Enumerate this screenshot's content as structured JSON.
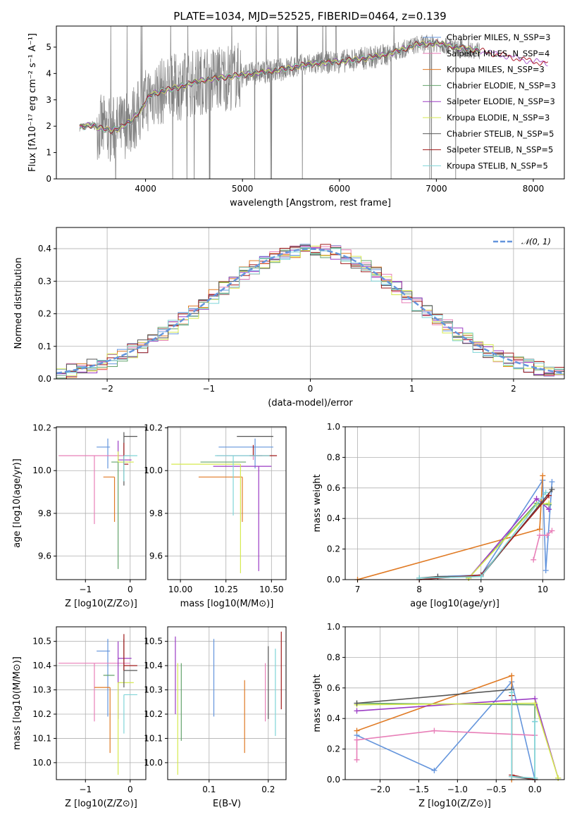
{
  "title": "PLATE=1034, MJD=52525, FIBERID=0464, z=0.139",
  "colors": {
    "Chabrier MILES": "#6495dc",
    "Salpeter MILES": "#e87fb8",
    "Kroupa MILES": "#e07a24",
    "Chabrier ELODIE": "#63a36c",
    "Salpeter ELODIE": "#9b3bc4",
    "Kroupa ELODIE": "#d5ea4f",
    "Chabrier STELIB": "#555555",
    "Salpeter STELIB": "#a11a1a",
    "Kroupa STELIB": "#7fd5d8",
    "data": "#808080",
    "gaussian": "#6495dc"
  },
  "chart_data": [
    {
      "type": "line",
      "panel": "spectrum",
      "title": "PLATE=1034, MJD=52525, FIBERID=0464, z=0.139",
      "xlabel": "wavelength [Angstrom, rest frame]",
      "ylabel": "Flux [fλ10⁻¹⁷ erg cm⁻² s⁻¹ A⁻¹]",
      "xlim": [
        3080,
        8320
      ],
      "ylim": [
        0,
        5.8
      ],
      "xticks": [
        4000,
        5000,
        6000,
        7000,
        8000
      ],
      "yticks": [
        0,
        1,
        2,
        3,
        4,
        5
      ],
      "legend_position": "upper right",
      "legend": [
        "Chabrier MILES, N_SSP=3",
        "Salpeter MILES, N_SSP=4",
        "Kroupa MILES, N_SSP=3",
        "Chabrier ELODIE, N_SSP=3",
        "Salpeter ELODIE, N_SSP=3",
        "Kroupa ELODIE, N_SSP=3",
        "Chabrier STELIB, N_SSP=5",
        "Salpeter STELIB, N_SSP=5",
        "Kroupa STELIB, N_SSP=5"
      ],
      "continuum": {
        "x": [
          3320,
          3450,
          3550,
          3650,
          3750,
          3850,
          3950,
          4050,
          4200,
          4400,
          4600,
          4800,
          5000,
          5200,
          5400,
          5600,
          5800,
          6000,
          6200,
          6400,
          6600,
          6800,
          7000,
          7200,
          7400,
          7600,
          7800,
          8000,
          8150
        ],
        "y": [
          1.95,
          2.05,
          1.9,
          1.85,
          1.95,
          2.2,
          2.6,
          3.2,
          3.35,
          3.55,
          3.75,
          3.85,
          3.95,
          4.05,
          4.15,
          4.3,
          4.4,
          4.45,
          4.55,
          4.65,
          4.85,
          5.1,
          5.15,
          5.0,
          4.9,
          4.75,
          4.6,
          4.45,
          4.4
        ]
      }
    },
    {
      "type": "histogram",
      "panel": "residuals",
      "xlabel": "(data-model)/error",
      "ylabel": "Normed distribution",
      "xlim": [
        -2.5,
        2.5
      ],
      "ylim": [
        0,
        0.465
      ],
      "xticks": [
        -2,
        -1,
        0,
        1,
        2
      ],
      "yticks": [
        0.0,
        0.1,
        0.2,
        0.3,
        0.4
      ],
      "legend": [
        "𝒩(0, 1)"
      ],
      "gaussian": {
        "mean": 0,
        "sigma": 1
      }
    },
    {
      "type": "errorbar",
      "panel": "age_vs_Z",
      "xlabel": "Z [log10(Z/Z⊙)]",
      "ylabel": "age  [log10(age/yr)]",
      "xlim": [
        -1.65,
        0.35
      ],
      "ylim": [
        9.49,
        10.205
      ],
      "xticks": [
        -1,
        0
      ],
      "yticks": [
        9.6,
        9.8,
        10.0,
        10.2
      ],
      "series": [
        {
          "name": "Chabrier MILES",
          "x": -0.5,
          "y": 10.11,
          "xerr": [
            0.25,
            0.05
          ],
          "yerr": [
            0.1,
            0.04
          ]
        },
        {
          "name": "Salpeter MILES",
          "x": -0.8,
          "y": 10.07,
          "xerr": [
            0.8,
            0.8
          ],
          "yerr": [
            0.32,
            0.0
          ]
        },
        {
          "name": "Kroupa MILES",
          "x": -0.35,
          "y": 9.97,
          "xerr": [
            0.25,
            0.0
          ],
          "yerr": [
            0.21,
            0.0
          ]
        },
        {
          "name": "Chabrier ELODIE",
          "x": -0.27,
          "y": 10.04,
          "xerr": [
            0.15,
            0.15
          ],
          "yerr": [
            0.5,
            0.0
          ]
        },
        {
          "name": "Salpeter ELODIE",
          "x": -0.27,
          "y": 10.05,
          "xerr": [
            0.0,
            0.3
          ],
          "yerr": [
            0.0,
            0.09
          ]
        },
        {
          "name": "Kroupa ELODIE",
          "x": -0.27,
          "y": 10.04,
          "xerr": [
            0.0,
            0.35
          ],
          "yerr": [
            0.0,
            0.05
          ]
        },
        {
          "name": "Chabrier STELIB",
          "x": -0.14,
          "y": 10.16,
          "xerr": [
            0.0,
            0.3
          ],
          "yerr": [
            0.23,
            0.02
          ]
        },
        {
          "name": "Salpeter STELIB",
          "x": -0.14,
          "y": 10.03,
          "xerr": [
            0.0,
            0.1
          ],
          "yerr": [
            0.0,
            0.1
          ]
        },
        {
          "name": "Kroupa STELIB",
          "x": -0.14,
          "y": 10.07,
          "xerr": [
            0.0,
            0.3
          ],
          "yerr": [
            0.12,
            0.0
          ]
        }
      ]
    },
    {
      "type": "errorbar",
      "panel": "age_vs_mass",
      "xlabel": "mass [log10(M/M⊙)]",
      "ylabel": "",
      "xlim": [
        9.93,
        10.58
      ],
      "ylim": [
        9.49,
        10.205
      ],
      "xticks": [
        10.0,
        10.25,
        10.5
      ],
      "yticks": [
        9.6,
        9.8,
        10.0,
        10.2
      ],
      "series": [
        {
          "name": "Chabrier MILES",
          "x": 10.41,
          "y": 10.11,
          "xerr": [
            0.2,
            0.1
          ],
          "yerr": [
            0.1,
            0.04
          ]
        },
        {
          "name": "Salpeter MILES",
          "x": 10.4,
          "y": 10.07,
          "xerr": [
            0.2,
            0.05
          ],
          "yerr": [
            0.02,
            0.0
          ]
        },
        {
          "name": "Kroupa MILES",
          "x": 10.34,
          "y": 9.97,
          "xerr": [
            0.24,
            0.0
          ],
          "yerr": [
            0.21,
            0.0
          ]
        },
        {
          "name": "Chabrier ELODIE",
          "x": 10.36,
          "y": 10.04,
          "xerr": [
            0.25,
            0.0
          ],
          "yerr": [
            0.0,
            0.0
          ]
        },
        {
          "name": "Salpeter ELODIE",
          "x": 10.43,
          "y": 10.02,
          "xerr": [
            0.25,
            0.07
          ],
          "yerr": [
            0.49,
            0.0
          ]
        },
        {
          "name": "Kroupa ELODIE",
          "x": 10.33,
          "y": 10.03,
          "xerr": [
            0.38,
            0.0
          ],
          "yerr": [
            0.51,
            0.0
          ]
        },
        {
          "name": "Chabrier STELIB",
          "x": 10.38,
          "y": 10.16,
          "xerr": [
            0.07,
            0.13
          ],
          "yerr": [
            0.0,
            0.0
          ]
        },
        {
          "name": "Salpeter STELIB",
          "x": 10.4,
          "y": 10.07,
          "xerr": [
            0.02,
            0.13
          ],
          "yerr": [
            0.0,
            0.05
          ]
        },
        {
          "name": "Kroupa STELIB",
          "x": 10.29,
          "y": 10.07,
          "xerr": [
            0.1,
            0.2
          ],
          "yerr": [
            0.28,
            0.0
          ]
        }
      ]
    },
    {
      "type": "line",
      "panel": "weight_vs_age",
      "xlabel": "age  [log10(age/yr)]",
      "ylabel": "mass weight",
      "xlim": [
        6.8,
        10.35
      ],
      "ylim": [
        0,
        1
      ],
      "xticks": [
        7,
        8,
        9,
        10
      ],
      "yticks": [
        0.0,
        0.2,
        0.4,
        0.6,
        0.8,
        1.0
      ],
      "series": [
        {
          "name": "Chabrier MILES",
          "x": [
            8.3,
            9.0,
            10.0,
            10.05,
            10.15
          ],
          "y": [
            0.02,
            0.03,
            0.65,
            0.06,
            0.64
          ]
        },
        {
          "name": "Salpeter MILES",
          "x": [
            9.85,
            9.95,
            10.07,
            10.15
          ],
          "y": [
            0.13,
            0.29,
            0.29,
            0.32
          ]
        },
        {
          "name": "Kroupa MILES",
          "x": [
            7.0,
            9.95,
            10.0
          ],
          "y": [
            0.0,
            0.33,
            0.68
          ]
        },
        {
          "name": "Chabrier ELODIE",
          "x": [
            8.8,
            9.9,
            10.1
          ],
          "y": [
            0.01,
            0.5,
            0.49
          ]
        },
        {
          "name": "Salpeter ELODIE",
          "x": [
            8.8,
            9.9,
            10.1
          ],
          "y": [
            0.01,
            0.53,
            0.46
          ]
        },
        {
          "name": "Kroupa ELODIE",
          "x": [
            8.8,
            9.9,
            10.1
          ],
          "y": [
            0.01,
            0.49,
            0.5
          ]
        },
        {
          "name": "Chabrier STELIB",
          "x": [
            8.0,
            8.3,
            9.0,
            10.15
          ],
          "y": [
            0.01,
            0.02,
            0.02,
            0.59
          ]
        },
        {
          "name": "Salpeter STELIB",
          "x": [
            8.0,
            9.0,
            10.1
          ],
          "y": [
            0.0,
            0.03,
            0.55
          ]
        },
        {
          "name": "Kroupa STELIB",
          "x": [
            8.0,
            9.0,
            10.05
          ],
          "y": [
            0.01,
            0.02,
            0.57
          ]
        }
      ]
    },
    {
      "type": "errorbar",
      "panel": "mass_vs_Z",
      "xlabel": "Z [log10(Z/Z⊙)]",
      "ylabel": "mass [log10(M/M⊙)]",
      "xlim": [
        -1.65,
        0.35
      ],
      "ylim": [
        9.93,
        10.56
      ],
      "xticks": [
        -1,
        0
      ],
      "yticks": [
        10.0,
        10.1,
        10.2,
        10.3,
        10.4,
        10.5
      ],
      "series": [
        {
          "name": "Chabrier MILES",
          "x": -0.5,
          "y": 10.46,
          "xerr": [
            0.25,
            0.05
          ],
          "yerr": [
            0.27,
            0.05
          ]
        },
        {
          "name": "Salpeter MILES",
          "x": -0.8,
          "y": 10.41,
          "xerr": [
            0.8,
            0.8
          ],
          "yerr": [
            0.24,
            0.0
          ]
        },
        {
          "name": "Kroupa MILES",
          "x": -0.45,
          "y": 10.31,
          "xerr": [
            0.35,
            0.0
          ],
          "yerr": [
            0.27,
            0.0
          ]
        },
        {
          "name": "Chabrier ELODIE",
          "x": -0.35,
          "y": 10.36,
          "xerr": [
            0.25,
            0.0
          ],
          "yerr": [
            0.0,
            0.0
          ]
        },
        {
          "name": "Salpeter ELODIE",
          "x": -0.27,
          "y": 10.43,
          "xerr": [
            0.0,
            0.3
          ],
          "yerr": [
            0.25,
            0.07
          ]
        },
        {
          "name": "Kroupa ELODIE",
          "x": -0.27,
          "y": 10.33,
          "xerr": [
            0.0,
            0.35
          ],
          "yerr": [
            0.38,
            0.0
          ]
        },
        {
          "name": "Chabrier STELIB",
          "x": -0.14,
          "y": 10.38,
          "xerr": [
            0.0,
            0.3
          ],
          "yerr": [
            0.07,
            0.13
          ]
        },
        {
          "name": "Salpeter STELIB",
          "x": -0.14,
          "y": 10.4,
          "xerr": [
            0.0,
            0.3
          ],
          "yerr": [
            0.02,
            0.13
          ]
        },
        {
          "name": "Kroupa STELIB",
          "x": -0.14,
          "y": 10.28,
          "xerr": [
            0.0,
            0.3
          ],
          "yerr": [
            0.16,
            0.0
          ]
        }
      ]
    },
    {
      "type": "errorbar",
      "panel": "mass_vs_EBV",
      "xlabel": "E(B-V)",
      "ylabel": "",
      "xlim": [
        0.03,
        0.23
      ],
      "ylim": [
        9.93,
        10.56
      ],
      "xticks": [
        0.1,
        0.2
      ],
      "yticks": [
        10.0,
        10.1,
        10.2,
        10.3,
        10.4,
        10.5
      ],
      "series": [
        {
          "name": "Chabrier MILES",
          "x": 0.108,
          "y": 10.35,
          "xerr": [
            0,
            0
          ],
          "yerr": [
            0.16,
            0.16
          ]
        },
        {
          "name": "Salpeter MILES",
          "x": 0.195,
          "y": 10.35,
          "xerr": [
            0,
            0
          ],
          "yerr": [
            0.18,
            0.06
          ]
        },
        {
          "name": "Kroupa MILES",
          "x": 0.16,
          "y": 10.19,
          "xerr": [
            0,
            0
          ],
          "yerr": [
            0.15,
            0.15
          ]
        },
        {
          "name": "Chabrier ELODIE",
          "x": 0.053,
          "y": 10.25,
          "xerr": [
            0,
            0
          ],
          "yerr": [
            0.16,
            0.16
          ]
        },
        {
          "name": "Salpeter ELODIE",
          "x": 0.043,
          "y": 10.36,
          "xerr": [
            0,
            0
          ],
          "yerr": [
            0.16,
            0.16
          ]
        },
        {
          "name": "Kroupa ELODIE",
          "x": 0.047,
          "y": 10.18,
          "xerr": [
            0,
            0
          ],
          "yerr": [
            0.23,
            0.23
          ]
        },
        {
          "name": "Chabrier STELIB",
          "x": 0.2,
          "y": 10.33,
          "xerr": [
            0,
            0
          ],
          "yerr": [
            0.15,
            0.15
          ]
        },
        {
          "name": "Salpeter STELIB",
          "x": 0.222,
          "y": 10.38,
          "xerr": [
            0,
            0
          ],
          "yerr": [
            0.16,
            0.16
          ]
        },
        {
          "name": "Kroupa STELIB",
          "x": 0.212,
          "y": 10.29,
          "xerr": [
            0,
            0
          ],
          "yerr": [
            0.18,
            0.18
          ]
        }
      ]
    },
    {
      "type": "line",
      "panel": "weight_vs_Z",
      "xlabel": "Z [log10(Z/Z⊙)]",
      "ylabel": "mass weight",
      "xlim": [
        -2.45,
        0.38
      ],
      "ylim": [
        0,
        1
      ],
      "xticks": [
        -2.0,
        -1.5,
        -1.0,
        -0.5,
        0.0
      ],
      "yticks": [
        0.0,
        0.2,
        0.4,
        0.6,
        0.8,
        1.0
      ],
      "series": [
        {
          "name": "Chabrier MILES",
          "x": [
            -2.3,
            -1.3,
            -0.3,
            0.0,
            0.0
          ],
          "y": [
            0.29,
            0.06,
            0.64,
            0.0,
            0.38
          ]
        },
        {
          "name": "Salpeter MILES",
          "x": [
            -2.3,
            -2.3,
            -1.3,
            0.0
          ],
          "y": [
            0.13,
            0.26,
            0.32,
            0.29
          ]
        },
        {
          "name": "Kroupa MILES",
          "x": [
            -2.3,
            -0.3,
            -0.3
          ],
          "y": [
            0.32,
            0.68,
            0.0
          ]
        },
        {
          "name": "Chabrier ELODIE",
          "x": [
            -2.3,
            0.0,
            0.0
          ],
          "y": [
            0.5,
            0.49,
            0.01
          ]
        },
        {
          "name": "Salpeter ELODIE",
          "x": [
            -2.3,
            0.0,
            0.3
          ],
          "y": [
            0.45,
            0.53,
            0.01
          ]
        },
        {
          "name": "Kroupa ELODIE",
          "x": [
            -2.3,
            0.0,
            0.3
          ],
          "y": [
            0.49,
            0.5,
            0.01
          ]
        },
        {
          "name": "Chabrier STELIB",
          "x": [
            -2.3,
            -0.3,
            -0.3,
            0.0
          ],
          "y": [
            0.5,
            0.59,
            0.02,
            0.0
          ]
        },
        {
          "name": "Salpeter STELIB",
          "x": [
            -0.3,
            -0.3,
            0.0
          ],
          "y": [
            0.55,
            0.03,
            0.0
          ]
        },
        {
          "name": "Kroupa STELIB",
          "x": [
            -0.3,
            -0.3,
            0.0,
            0.0
          ],
          "y": [
            0.57,
            0.02,
            0.01,
            0.38
          ]
        }
      ]
    }
  ]
}
